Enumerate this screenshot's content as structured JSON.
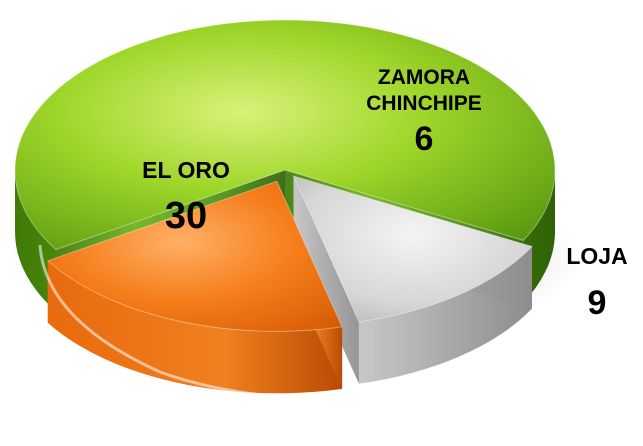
{
  "chart_data": {
    "type": "pie",
    "slices": [
      {
        "label": "EL ORO",
        "value": 30,
        "color": "#7cc315"
      },
      {
        "label": "ZAMORA CHINCHIPE",
        "label_lines": [
          "ZAMORA",
          "CHINCHIPE"
        ],
        "value": 6,
        "color": "#c9c9c9"
      },
      {
        "label": "LOJA",
        "value": 9,
        "color": "#f2760f"
      }
    ],
    "title": "",
    "legend": "none"
  }
}
